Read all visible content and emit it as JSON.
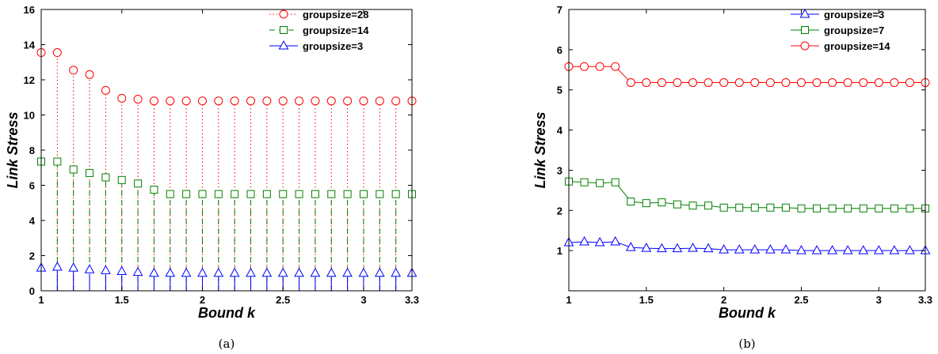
{
  "chart_data": [
    {
      "id": "a",
      "type": "stem",
      "caption": "(a)",
      "xlabel": "Bound k",
      "ylabel": "Link Stress",
      "xlim": [
        1,
        3.3
      ],
      "ylim": [
        0,
        16
      ],
      "xticks": [
        "1",
        "1.5",
        "2",
        "2.5",
        "3",
        "3.3"
      ],
      "xtick_values": [
        1,
        1.5,
        2,
        2.5,
        3,
        3.3
      ],
      "yticks": [
        "0",
        "2",
        "4",
        "6",
        "8",
        "10",
        "12",
        "14",
        "16"
      ],
      "ytick_values": [
        0,
        2,
        4,
        6,
        8,
        10,
        12,
        14,
        16
      ],
      "legend_position": "top-right",
      "x": [
        1.0,
        1.1,
        1.2,
        1.3,
        1.4,
        1.5,
        1.6,
        1.7,
        1.8,
        1.9,
        2.0,
        2.1,
        2.2,
        2.3,
        2.4,
        2.5,
        2.6,
        2.7,
        2.8,
        2.9,
        3.0,
        3.1,
        3.2,
        3.3
      ],
      "series": [
        {
          "name": "groupsize=28",
          "color": "#ff0000",
          "marker": "circle",
          "line": "dotted",
          "values": [
            13.55,
            13.55,
            12.55,
            12.3,
            11.4,
            10.95,
            10.9,
            10.8,
            10.8,
            10.8,
            10.8,
            10.8,
            10.8,
            10.8,
            10.8,
            10.8,
            10.8,
            10.8,
            10.8,
            10.8,
            10.8,
            10.8,
            10.8,
            10.8
          ]
        },
        {
          "name": "groupsize=14",
          "color": "#008000",
          "marker": "square",
          "line": "dashed",
          "values": [
            7.35,
            7.35,
            6.9,
            6.7,
            6.45,
            6.3,
            6.1,
            5.75,
            5.5,
            5.5,
            5.5,
            5.5,
            5.5,
            5.5,
            5.5,
            5.5,
            5.5,
            5.5,
            5.5,
            5.5,
            5.5,
            5.5,
            5.5,
            5.5
          ]
        },
        {
          "name": "groupsize=3",
          "color": "#0000ff",
          "marker": "triangle",
          "line": "solid",
          "values": [
            1.3,
            1.35,
            1.3,
            1.2,
            1.15,
            1.1,
            1.05,
            1.0,
            1.0,
            1.0,
            1.0,
            1.0,
            1.0,
            1.0,
            1.0,
            1.0,
            1.0,
            1.0,
            1.0,
            1.0,
            1.0,
            1.0,
            1.0,
            1.0
          ]
        }
      ]
    },
    {
      "id": "b",
      "type": "line",
      "caption": "(b)",
      "xlabel": "Bound k",
      "ylabel": "Link Stress",
      "xlim": [
        1,
        3.3
      ],
      "ylim": [
        0,
        7
      ],
      "xticks": [
        "1",
        "1.5",
        "2",
        "2.5",
        "3",
        "3.3"
      ],
      "xtick_values": [
        1,
        1.5,
        2,
        2.5,
        3,
        3.3
      ],
      "yticks": [
        "1",
        "2",
        "3",
        "4",
        "5",
        "6",
        "7"
      ],
      "ytick_values": [
        1,
        2,
        3,
        4,
        5,
        6,
        7
      ],
      "legend_position": "top-right",
      "x": [
        1.0,
        1.1,
        1.2,
        1.3,
        1.4,
        1.5,
        1.6,
        1.7,
        1.8,
        1.9,
        2.0,
        2.1,
        2.2,
        2.3,
        2.4,
        2.5,
        2.6,
        2.7,
        2.8,
        2.9,
        3.0,
        3.1,
        3.2,
        3.3
      ],
      "series": [
        {
          "name": "groupsize=3",
          "color": "#0000ff",
          "marker": "triangle",
          "line": "solid",
          "values": [
            1.2,
            1.22,
            1.2,
            1.22,
            1.08,
            1.06,
            1.05,
            1.05,
            1.06,
            1.05,
            1.02,
            1.02,
            1.02,
            1.02,
            1.02,
            1.0,
            1.0,
            1.0,
            1.0,
            1.0,
            1.0,
            1.0,
            1.0,
            1.0
          ]
        },
        {
          "name": "groupsize=7",
          "color": "#008000",
          "marker": "square",
          "line": "solid",
          "values": [
            2.72,
            2.7,
            2.68,
            2.7,
            2.22,
            2.18,
            2.2,
            2.15,
            2.12,
            2.12,
            2.07,
            2.07,
            2.07,
            2.07,
            2.07,
            2.05,
            2.05,
            2.05,
            2.05,
            2.05,
            2.05,
            2.05,
            2.05,
            2.05
          ]
        },
        {
          "name": "groupsize=14",
          "color": "#ff0000",
          "marker": "circle",
          "line": "solid",
          "values": [
            5.58,
            5.58,
            5.58,
            5.58,
            5.18,
            5.18,
            5.18,
            5.18,
            5.18,
            5.18,
            5.18,
            5.18,
            5.18,
            5.18,
            5.18,
            5.18,
            5.18,
            5.18,
            5.18,
            5.18,
            5.18,
            5.18,
            5.18,
            5.18
          ]
        }
      ]
    }
  ]
}
